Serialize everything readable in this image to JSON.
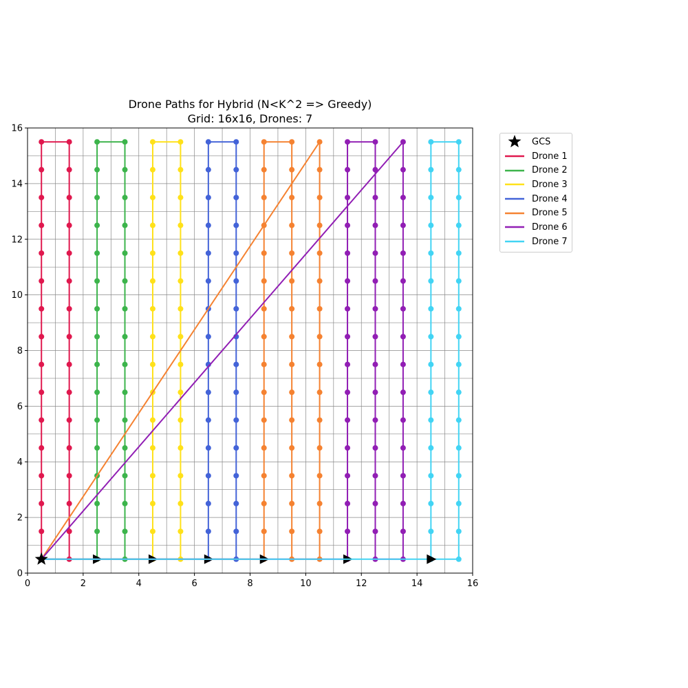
{
  "chart_data": {
    "type": "line",
    "title": "Drone Paths for Hybrid (N<K^2 => Greedy)",
    "subtitle": "Grid: 16x16, Drones: 7",
    "xlabel": "",
    "ylabel": "",
    "xlim": [
      0,
      16
    ],
    "ylim": [
      0,
      16
    ],
    "xticks": [
      "0",
      "2",
      "4",
      "6",
      "8",
      "10",
      "12",
      "14",
      "16"
    ],
    "yticks": [
      "0",
      "2",
      "4",
      "6",
      "8",
      "10",
      "12",
      "14",
      "16"
    ],
    "grid": true,
    "legend_position": "outside-top-right",
    "gcs": {
      "name": "GCS",
      "x": 0.5,
      "y": 0.5,
      "marker": "star",
      "color": "#000000"
    },
    "series": [
      {
        "name": "Drone 1",
        "color": "#e0184e",
        "columns": [
          0.5,
          1.5
        ],
        "arrow_x": null
      },
      {
        "name": "Drone 2",
        "color": "#3cb44b",
        "columns": [
          2.5,
          3.5
        ],
        "arrow_x": 2.5
      },
      {
        "name": "Drone 3",
        "color": "#ffe119",
        "columns": [
          4.5,
          5.5
        ],
        "arrow_x": 4.5
      },
      {
        "name": "Drone 4",
        "color": "#4363d8",
        "columns": [
          6.5,
          7.5
        ],
        "arrow_x": 6.5
      },
      {
        "name": "Drone 5",
        "color": "#f58231",
        "columns": [
          8.5,
          9.5,
          10.5
        ],
        "arrow_x": 8.5
      },
      {
        "name": "Drone 6",
        "color": "#911eb4",
        "columns": [
          11.5,
          12.5,
          13.5
        ],
        "arrow_x": 11.5
      },
      {
        "name": "Drone 7",
        "color": "#42d4f4",
        "columns": [
          14.5,
          15.5
        ],
        "arrow_x": 14.5
      }
    ]
  }
}
